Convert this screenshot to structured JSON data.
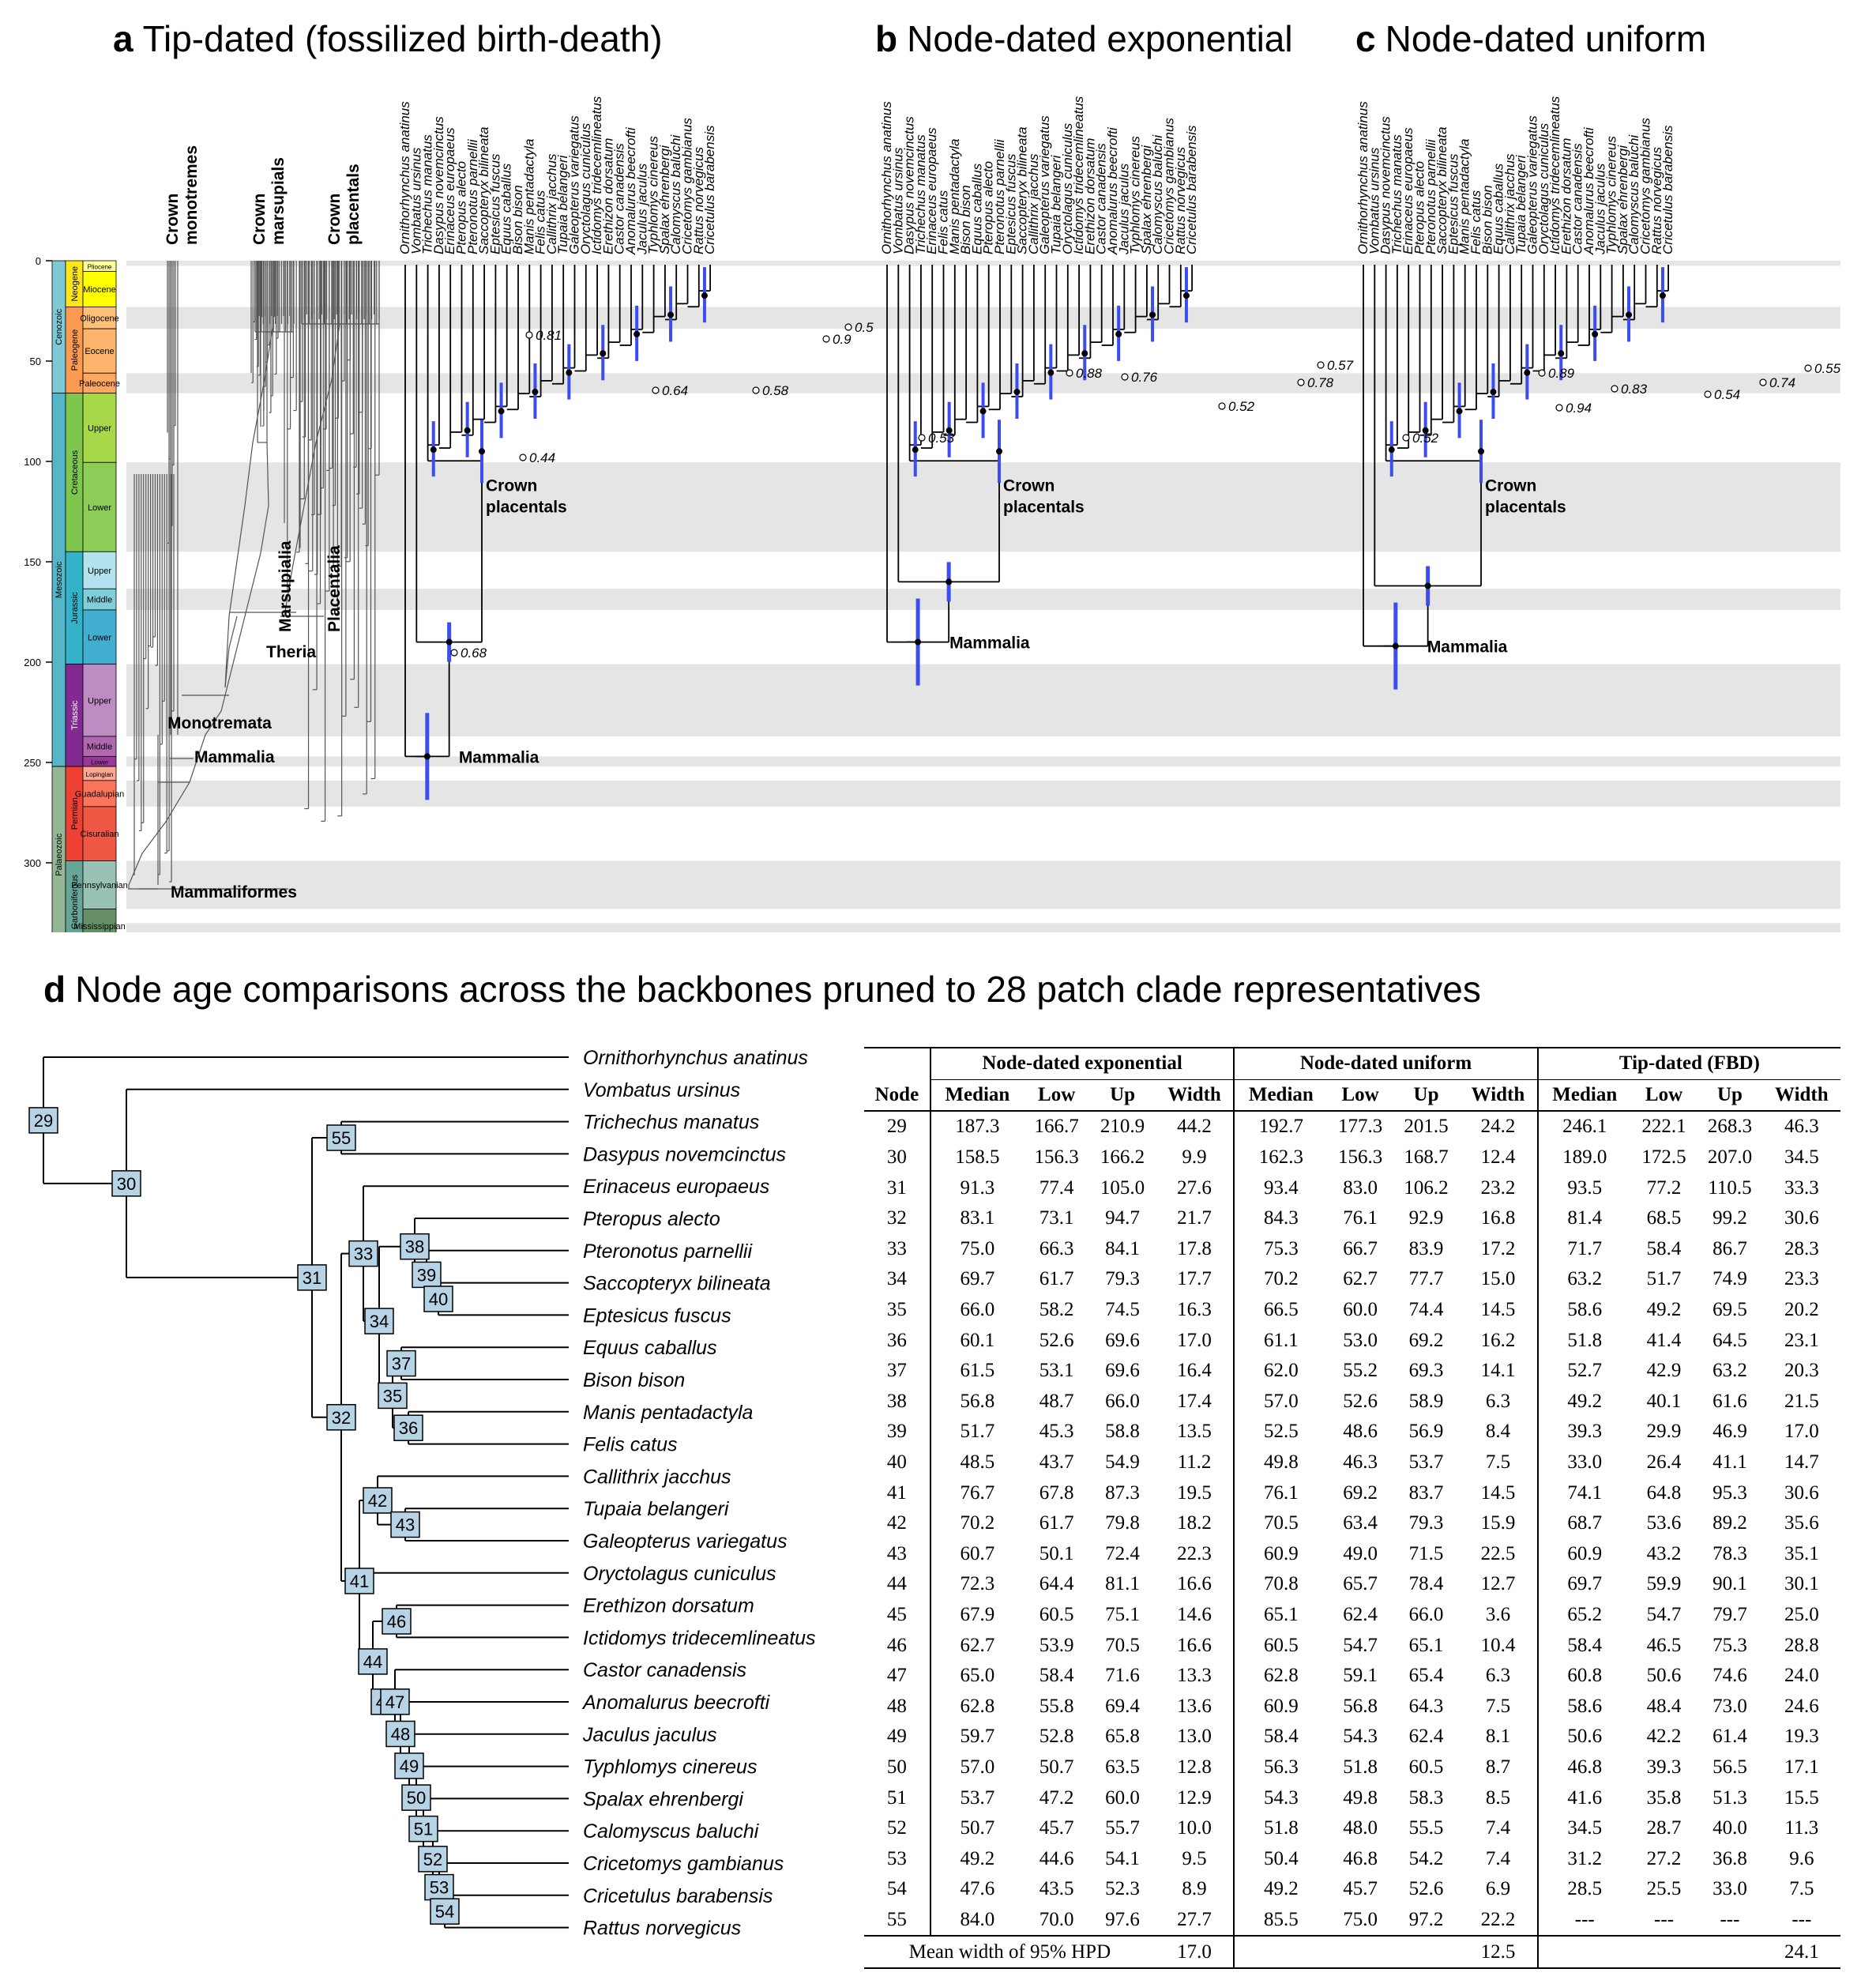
{
  "panels": {
    "a": {
      "letter": "a",
      "title": "Tip-dated (fossilized birth-death)"
    },
    "b": {
      "letter": "b",
      "title": "Node-dated exponential"
    },
    "c": {
      "letter": "c",
      "title": "Node-dated uniform"
    },
    "d": {
      "letter": "d",
      "title": "Node age comparisons across the backbones pruned to 28 patch clade representatives"
    }
  },
  "timescale": {
    "ticks": [
      "0",
      "50",
      "100",
      "150",
      "200",
      "250",
      "300"
    ],
    "eras": [
      "Cenozoic",
      "Mesozoic",
      "Palaeozoic"
    ],
    "periods": [
      "Neogene",
      "Paleogene",
      "Cretaceous",
      "Jurassic",
      "Triassic",
      "Permian",
      "Carboniferous"
    ],
    "epochs": [
      "Pliocene",
      "Miocene",
      "Oligocene",
      "Eocene",
      "Paleocene",
      "Upper",
      "Lower",
      "Upper",
      "Middle",
      "Lower",
      "Upper",
      "Middle",
      "Lower",
      "Lopingian",
      "Guadalupian",
      "Cisuralian",
      "Pennsylvanian",
      "Mississippian"
    ]
  },
  "panel_a_labels": {
    "crown_groups": [
      "Crown monotremes",
      "Crown marsupials",
      "Crown placentals"
    ],
    "clades": [
      "Marsupialia",
      "Placentalia",
      "Theria",
      "Monotremata",
      "Mammalia",
      "Mammaliformes"
    ]
  },
  "species": [
    "Ornithorhynchus anatinus",
    "Vombatus ursinus",
    "Trichechus manatus",
    "Dasypus novemcinctus",
    "Erinaceus europaeus",
    "Pteropus alecto",
    "Pteronotus parnellii",
    "Saccopteryx bilineata",
    "Eptesicus fuscus",
    "Equus caballus",
    "Bison bison",
    "Manis pentadactyla",
    "Felis catus",
    "Callithrix jacchus",
    "Tupaia belangeri",
    "Galeopterus variegatus",
    "Oryctolagus cuniculus",
    "Ictidomys tridecemlineatus",
    "Erethizon dorsatum",
    "Castor canadensis",
    "Anomalurus beecrofti",
    "Jaculus jaculus",
    "Typhlomys cinereus",
    "Spalax ehrenbergi",
    "Calomyscus baluchi",
    "Cricetomys gambianus",
    "Rattus norvegicus",
    "Cricetulus barabensis"
  ],
  "species_b": [
    "Ornithorhynchus anatinus",
    "Vombatus ursinus",
    "Dasypus novemcinctus",
    "Trichechus manatus",
    "Erinaceus europaeus",
    "Felis catus",
    "Manis pentadactyla",
    "Bison bison",
    "Equus caballus",
    "Pteropus alecto",
    "Pteronotus parnellii",
    "Eptesicus fuscus",
    "Saccopteryx bilineata",
    "Callithrix jacchus",
    "Galeopterus variegatus",
    "Tupaia belangeri",
    "Oryctolagus cuniculus",
    "Ictidomys tridecemlineatus",
    "Erethizon dorsatum",
    "Castor canadensis",
    "Anomalurus beecrofti",
    "Jaculus jaculus",
    "Typhlomys cinereus",
    "Spalax ehrenbergi",
    "Calomyscus baluchi",
    "Cricetomys gambianus",
    "Rattus norvegicus",
    "Cricetulus barabensis"
  ],
  "species_c": [
    "Ornithorhynchus anatinus",
    "Vombatus ursinus",
    "Dasypus novemcinctus",
    "Trichechus manatus",
    "Erinaceus europaeus",
    "Pteropus alecto",
    "Pteronotus parnellii",
    "Saccopteryx bilineata",
    "Eptesicus fuscus",
    "Manis pentadactyla",
    "Felis catus",
    "Bison bison",
    "Equus caballus",
    "Callithrix jacchus",
    "Tupaia belangeri",
    "Galeopterus variegatus",
    "Oryctolagus cuniculus",
    "Ictidomys tridecemlineatus",
    "Erethizon dorsatum",
    "Castor canadensis",
    "Anomalurus beecrofti",
    "Jaculus jaculus",
    "Typhlomys cinereus",
    "Spalax ehrenbergi",
    "Calomyscus baluchi",
    "Cricetomys gambianus",
    "Rattus norvegicus",
    "Cricetulus barabensis"
  ],
  "tree_labels": {
    "crown_placentals": "Crown placentals",
    "mammalia": "Mammalia",
    "support_a": [
      "0.81",
      "0.5",
      "0.9",
      "0.64",
      "0.58",
      "0.44",
      "0.68"
    ],
    "support_b": [
      "0.88",
      "0.76",
      "0.57",
      "0.78",
      "0.52",
      "0.53"
    ],
    "support_c": [
      "0.89",
      "0.83",
      "0.94",
      "0.54",
      "0.74",
      "0.55",
      "0.52"
    ]
  },
  "panel_d_species": [
    "Ornithorhynchus anatinus",
    "Vombatus ursinus",
    "Trichechus manatus",
    "Dasypus novemcinctus",
    "Erinaceus europaeus",
    "Pteropus alecto",
    "Pteronotus parnellii",
    "Saccopteryx bilineata",
    "Eptesicus fuscus",
    "Equus caballus",
    "Bison bison",
    "Manis pentadactyla",
    "Felis catus",
    "Callithrix jacchus",
    "Tupaia belangeri",
    "Galeopterus variegatus",
    "Oryctolagus cuniculus",
    "Erethizon dorsatum",
    "Ictidomys tridecemlineatus",
    "Castor canadensis",
    "Anomalurus beecrofti",
    "Jaculus jaculus",
    "Typhlomys cinereus",
    "Spalax ehrenbergi",
    "Calomyscus baluchi",
    "Cricetomys gambianus",
    "Cricetulus barabensis",
    "Rattus norvegicus"
  ],
  "table": {
    "groups": [
      "Node-dated exponential",
      "Node-dated uniform",
      "Tip-dated (FBD)"
    ],
    "columns": [
      "Node",
      "Median",
      "Low",
      "Up",
      "Width",
      "Median",
      "Low",
      "Up",
      "Width",
      "Median",
      "Low",
      "Up",
      "Width"
    ],
    "rows": [
      [
        "29",
        "187.3",
        "166.7",
        "210.9",
        "44.2",
        "192.7",
        "177.3",
        "201.5",
        "24.2",
        "246.1",
        "222.1",
        "268.3",
        "46.3"
      ],
      [
        "30",
        "158.5",
        "156.3",
        "166.2",
        "9.9",
        "162.3",
        "156.3",
        "168.7",
        "12.4",
        "189.0",
        "172.5",
        "207.0",
        "34.5"
      ],
      [
        "31",
        "91.3",
        "77.4",
        "105.0",
        "27.6",
        "93.4",
        "83.0",
        "106.2",
        "23.2",
        "93.5",
        "77.2",
        "110.5",
        "33.3"
      ],
      [
        "32",
        "83.1",
        "73.1",
        "94.7",
        "21.7",
        "84.3",
        "76.1",
        "92.9",
        "16.8",
        "81.4",
        "68.5",
        "99.2",
        "30.6"
      ],
      [
        "33",
        "75.0",
        "66.3",
        "84.1",
        "17.8",
        "75.3",
        "66.7",
        "83.9",
        "17.2",
        "71.7",
        "58.4",
        "86.7",
        "28.3"
      ],
      [
        "34",
        "69.7",
        "61.7",
        "79.3",
        "17.7",
        "70.2",
        "62.7",
        "77.7",
        "15.0",
        "63.2",
        "51.7",
        "74.9",
        "23.3"
      ],
      [
        "35",
        "66.0",
        "58.2",
        "74.5",
        "16.3",
        "66.5",
        "60.0",
        "74.4",
        "14.5",
        "58.6",
        "49.2",
        "69.5",
        "20.2"
      ],
      [
        "36",
        "60.1",
        "52.6",
        "69.6",
        "17.0",
        "61.1",
        "53.0",
        "69.2",
        "16.2",
        "51.8",
        "41.4",
        "64.5",
        "23.1"
      ],
      [
        "37",
        "61.5",
        "53.1",
        "69.6",
        "16.4",
        "62.0",
        "55.2",
        "69.3",
        "14.1",
        "52.7",
        "42.9",
        "63.2",
        "20.3"
      ],
      [
        "38",
        "56.8",
        "48.7",
        "66.0",
        "17.4",
        "57.0",
        "52.6",
        "58.9",
        "6.3",
        "49.2",
        "40.1",
        "61.6",
        "21.5"
      ],
      [
        "39",
        "51.7",
        "45.3",
        "58.8",
        "13.5",
        "52.5",
        "48.6",
        "56.9",
        "8.4",
        "39.3",
        "29.9",
        "46.9",
        "17.0"
      ],
      [
        "40",
        "48.5",
        "43.7",
        "54.9",
        "11.2",
        "49.8",
        "46.3",
        "53.7",
        "7.5",
        "33.0",
        "26.4",
        "41.1",
        "14.7"
      ],
      [
        "41",
        "76.7",
        "67.8",
        "87.3",
        "19.5",
        "76.1",
        "69.2",
        "83.7",
        "14.5",
        "74.1",
        "64.8",
        "95.3",
        "30.6"
      ],
      [
        "42",
        "70.2",
        "61.7",
        "79.8",
        "18.2",
        "70.5",
        "63.4",
        "79.3",
        "15.9",
        "68.7",
        "53.6",
        "89.2",
        "35.6"
      ],
      [
        "43",
        "60.7",
        "50.1",
        "72.4",
        "22.3",
        "60.9",
        "49.0",
        "71.5",
        "22.5",
        "60.9",
        "43.2",
        "78.3",
        "35.1"
      ],
      [
        "44",
        "72.3",
        "64.4",
        "81.1",
        "16.6",
        "70.8",
        "65.7",
        "78.4",
        "12.7",
        "69.7",
        "59.9",
        "90.1",
        "30.1"
      ],
      [
        "45",
        "67.9",
        "60.5",
        "75.1",
        "14.6",
        "65.1",
        "62.4",
        "66.0",
        "3.6",
        "65.2",
        "54.7",
        "79.7",
        "25.0"
      ],
      [
        "46",
        "62.7",
        "53.9",
        "70.5",
        "16.6",
        "60.5",
        "54.7",
        "65.1",
        "10.4",
        "58.4",
        "46.5",
        "75.3",
        "28.8"
      ],
      [
        "47",
        "65.0",
        "58.4",
        "71.6",
        "13.3",
        "62.8",
        "59.1",
        "65.4",
        "6.3",
        "60.8",
        "50.6",
        "74.6",
        "24.0"
      ],
      [
        "48",
        "62.8",
        "55.8",
        "69.4",
        "13.6",
        "60.9",
        "56.8",
        "64.3",
        "7.5",
        "58.6",
        "48.4",
        "73.0",
        "24.6"
      ],
      [
        "49",
        "59.7",
        "52.8",
        "65.8",
        "13.0",
        "58.4",
        "54.3",
        "62.4",
        "8.1",
        "50.6",
        "42.2",
        "61.4",
        "19.3"
      ],
      [
        "50",
        "57.0",
        "50.7",
        "63.5",
        "12.8",
        "56.3",
        "51.8",
        "60.5",
        "8.7",
        "46.8",
        "39.3",
        "56.5",
        "17.1"
      ],
      [
        "51",
        "53.7",
        "47.2",
        "60.0",
        "12.9",
        "54.3",
        "49.8",
        "58.3",
        "8.5",
        "41.6",
        "35.8",
        "51.3",
        "15.5"
      ],
      [
        "52",
        "50.7",
        "45.7",
        "55.7",
        "10.0",
        "51.8",
        "48.0",
        "55.5",
        "7.4",
        "34.5",
        "28.7",
        "40.0",
        "11.3"
      ],
      [
        "53",
        "49.2",
        "44.6",
        "54.1",
        "9.5",
        "50.4",
        "46.8",
        "54.2",
        "7.4",
        "31.2",
        "27.2",
        "36.8",
        "9.6"
      ],
      [
        "54",
        "47.6",
        "43.5",
        "52.3",
        "8.9",
        "49.2",
        "45.7",
        "52.6",
        "6.9",
        "28.5",
        "25.5",
        "33.0",
        "7.5"
      ],
      [
        "55",
        "84.0",
        "70.0",
        "97.6",
        "27.7",
        "85.5",
        "75.0",
        "97.2",
        "22.2",
        "---",
        "---",
        "---",
        "---"
      ]
    ],
    "footer_label": "Mean width of 95% HPD",
    "footer_values": [
      "17.0",
      "12.5",
      "24.1"
    ]
  }
}
